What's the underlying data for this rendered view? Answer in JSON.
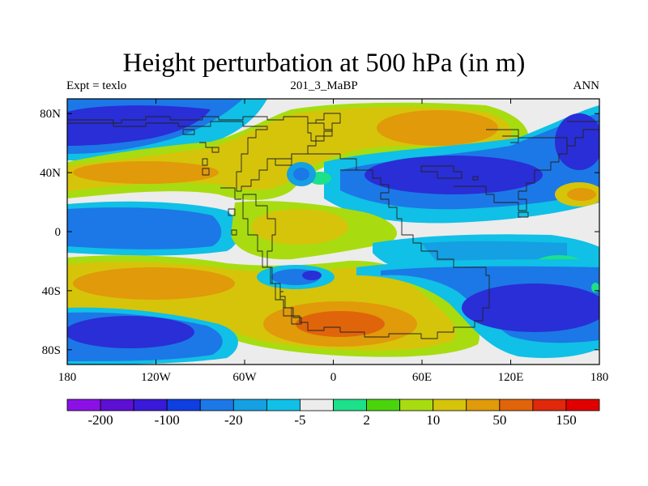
{
  "header": {
    "title": "Height perturbation at 500 hPa (in m)",
    "left_label": "Expt = texlo",
    "center_label": "201_3_MaBP",
    "right_label": "ANN"
  },
  "map": {
    "projection": "cylindrical-equidistant",
    "lon_range": [
      -180,
      180
    ],
    "lat_range": [
      -90,
      90
    ],
    "x_ticks": [
      {
        "value": -180,
        "label": "180"
      },
      {
        "value": -120,
        "label": "120W"
      },
      {
        "value": -60,
        "label": "60W"
      },
      {
        "value": 0,
        "label": "0"
      },
      {
        "value": 60,
        "label": "60E"
      },
      {
        "value": 120,
        "label": "120E"
      },
      {
        "value": 180,
        "label": "180"
      }
    ],
    "y_ticks": [
      {
        "value": 80,
        "label": "80N"
      },
      {
        "value": 40,
        "label": "40N"
      },
      {
        "value": 0,
        "label": "0"
      },
      {
        "value": -40,
        "label": "40S"
      },
      {
        "value": -80,
        "label": "80S"
      }
    ]
  },
  "colorbar": {
    "colors": [
      "#8b10e6",
      "#5e0fd4",
      "#3a1ad8",
      "#0f3fe0",
      "#1c78e6",
      "#14a0e2",
      "#10c0e6",
      "#ececec",
      "#1ce08a",
      "#4ad40c",
      "#a8dc10",
      "#d6c40a",
      "#e09a0a",
      "#e0640a",
      "#e0280a",
      "#e00000"
    ],
    "labels": [
      {
        "boundary": 1,
        "text": "-200"
      },
      {
        "boundary": 3,
        "text": "-100"
      },
      {
        "boundary": 5,
        "text": "-20"
      },
      {
        "boundary": 7,
        "text": "-5"
      },
      {
        "boundary": 9,
        "text": "2"
      },
      {
        "boundary": 11,
        "text": "10"
      },
      {
        "boundary": 13,
        "text": "50"
      },
      {
        "boundary": 15,
        "text": "150"
      }
    ]
  },
  "field_colors": {
    "background": "#ececec",
    "deep_blue": "#2a2ed6",
    "blue": "#1c78e6",
    "light_blue": "#14a0e2",
    "cyan": "#10c0e6",
    "green": "#1ce08a",
    "yellow_green": "#a8dc10",
    "gold": "#d6c40a",
    "orange": "#e09a0a",
    "dark_orange": "#e0640a"
  }
}
